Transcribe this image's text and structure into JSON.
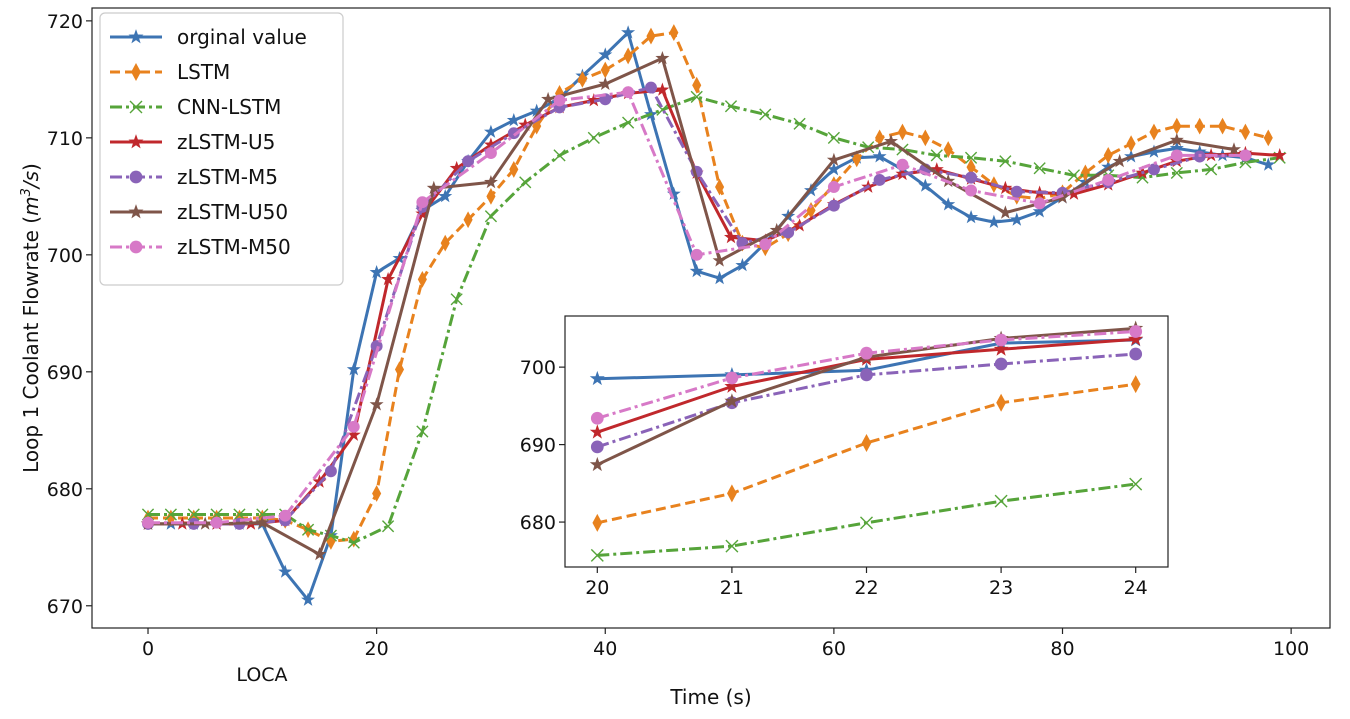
{
  "colors": {
    "orginal value": "#3d74b3",
    "LSTM": "#e8821e",
    "CNN-LSTM": "#56a43a",
    "zLSTM-U5": "#c0282c",
    "zLSTM-M5": "#8a63b8",
    "zLSTM-U50": "#7f5549",
    "zLSTM-M50": "#d779c7"
  },
  "chart_data": [
    {
      "type": "line",
      "title": "",
      "xlabel": "Time (s)",
      "ylabel_prefix": "Loop 1 Coolant Flowrate (",
      "ylabel_unit": "m",
      "ylabel_sup": "3",
      "ylabel_unit2": "/s",
      "ylabel_suffix": ")",
      "annotation": "LOCA",
      "annotation_x": 10,
      "xlim": [
        -4.9,
        103.4
      ],
      "ylim": [
        668.1,
        721.1
      ],
      "xticks": [
        0,
        20,
        40,
        60,
        80,
        100
      ],
      "yticks": [
        670,
        680,
        690,
        700,
        710,
        720
      ],
      "grid": false,
      "legend_position": "top-left",
      "series": [
        {
          "name": "orginal value",
          "style": "solid",
          "marker": "star",
          "x": [
            0,
            2,
            4,
            6,
            8,
            10,
            12,
            14,
            16,
            18,
            20,
            22,
            24,
            26,
            28,
            30,
            32,
            34,
            36,
            38,
            40,
            42,
            44,
            46,
            48,
            50,
            52,
            54,
            56,
            58,
            60,
            62,
            64,
            66,
            68,
            70,
            72,
            74,
            76,
            78,
            80,
            82,
            84,
            86,
            88,
            90,
            92,
            94,
            96,
            98
          ],
          "y": [
            677,
            677,
            677,
            677,
            677,
            677,
            672.9,
            670.5,
            676,
            690.2,
            698.5,
            699.7,
            703.8,
            705,
            708,
            710.5,
            711.5,
            712.3,
            713.4,
            715.3,
            717.1,
            719,
            712,
            705.2,
            698.6,
            698,
            699.1,
            701,
            703.3,
            705.5,
            707.3,
            708.3,
            708.4,
            707.3,
            705.9,
            704.3,
            703.2,
            702.8,
            703,
            703.7,
            704.9,
            706.2,
            707.5,
            708.4,
            708.8,
            709.1,
            708.8,
            708.5,
            708.3,
            707.7
          ]
        },
        {
          "name": "LSTM",
          "style": "dashed",
          "marker": "diamond",
          "x": [
            0,
            2,
            4,
            6,
            8,
            10,
            12,
            14,
            16,
            18,
            20,
            22,
            24,
            26,
            28,
            30,
            32,
            34,
            36,
            38,
            40,
            42,
            44,
            46,
            48,
            50,
            52,
            54,
            56,
            58,
            60,
            62,
            64,
            66,
            68,
            70,
            72,
            74,
            76,
            78,
            80,
            82,
            84,
            86,
            88,
            90,
            92,
            94,
            96,
            98
          ],
          "y": [
            677.5,
            677.5,
            677.5,
            677.5,
            677.5,
            677.5,
            677.3,
            676.5,
            675.5,
            675.7,
            679.6,
            690.2,
            697.9,
            701,
            703,
            705,
            707.3,
            711,
            713.8,
            715,
            715.8,
            717,
            718.7,
            719,
            714.5,
            705.8,
            701,
            700.6,
            701.8,
            703.8,
            706,
            708.2,
            710,
            710.5,
            710,
            709,
            707.5,
            706,
            705,
            704.8,
            705.3,
            707,
            708.5,
            709.5,
            710.5,
            711,
            711,
            711,
            710.5,
            710
          ]
        },
        {
          "name": "CNN-LSTM",
          "style": "dashdot",
          "marker": "x",
          "x": [
            0,
            2,
            4,
            6,
            8,
            10,
            12,
            14,
            16,
            18,
            21,
            24,
            27,
            30,
            33,
            36,
            39,
            42,
            45,
            48,
            51,
            54,
            57,
            60,
            63,
            66,
            69,
            72,
            75,
            78,
            81,
            84,
            87,
            90,
            93,
            96,
            99
          ],
          "y": [
            677.8,
            677.8,
            677.8,
            677.8,
            677.8,
            677.8,
            677.8,
            676.5,
            676,
            675.4,
            676.8,
            684.9,
            696.2,
            703.3,
            706.2,
            708.5,
            710,
            711.3,
            712.4,
            713.5,
            712.7,
            712,
            711.2,
            710,
            709.2,
            709,
            708.5,
            708.3,
            708,
            707.4,
            706.8,
            706.8,
            706.6,
            707,
            707.3,
            707.9,
            708.3
          ]
        },
        {
          "name": "zLSTM-U5",
          "style": "solid",
          "marker": "star",
          "x": [
            0,
            3,
            6,
            9,
            12,
            15,
            18,
            21,
            24,
            27,
            30,
            33,
            36,
            39,
            42,
            45,
            48,
            51,
            54,
            57,
            60,
            63,
            66,
            69,
            72,
            75,
            78,
            81,
            84,
            87,
            90,
            93,
            96,
            99
          ],
          "y": [
            677,
            677,
            677,
            677,
            677.3,
            680.6,
            684.6,
            697.9,
            703.5,
            707.4,
            709.4,
            711.1,
            712.6,
            713.2,
            713.8,
            714.1,
            707,
            701.5,
            701.2,
            702.5,
            704.3,
            705.8,
            706.9,
            707.3,
            706.5,
            705.7,
            705.3,
            705.2,
            706,
            707,
            708,
            708.5,
            708.7,
            708.5
          ]
        },
        {
          "name": "zLSTM-M5",
          "style": "dashdot",
          "marker": "circle",
          "x": [
            0,
            4,
            8,
            12,
            16,
            20,
            24,
            28,
            32,
            36,
            40,
            44,
            48,
            52,
            56,
            60,
            64,
            68,
            72,
            76,
            80,
            84,
            88,
            92,
            96
          ],
          "y": [
            677,
            677,
            677,
            677.3,
            681.5,
            692.2,
            704.1,
            708,
            710.4,
            712.6,
            713.3,
            714.3,
            707.1,
            701,
            701.9,
            704.2,
            706.4,
            707.3,
            706.6,
            705.4,
            705.3,
            706.2,
            707.3,
            708.4,
            708.5
          ]
        },
        {
          "name": "zLSTM-U50",
          "style": "solid",
          "marker": "star",
          "x": [
            0,
            5,
            10,
            15,
            20,
            25,
            30,
            35,
            40,
            45,
            50,
            55,
            60,
            65,
            70,
            75,
            80,
            85,
            90,
            95
          ],
          "y": [
            677,
            677,
            677.1,
            674.4,
            687.2,
            705.7,
            706.2,
            713.3,
            714.6,
            716.8,
            699.5,
            702.1,
            708.1,
            709.7,
            706.3,
            703.6,
            704.9,
            708,
            709.8,
            709
          ]
        },
        {
          "name": "zLSTM-M50",
          "style": "dashdot",
          "marker": "circle",
          "x": [
            0,
            6,
            12,
            18,
            24,
            30,
            36,
            42,
            48,
            54,
            60,
            66,
            72,
            78,
            84,
            90,
            96
          ],
          "y": [
            677.1,
            677.1,
            677.7,
            685.3,
            704.5,
            708.7,
            713.2,
            713.9,
            700,
            700.9,
            705.8,
            707.7,
            705.5,
            704.4,
            706.4,
            708.5,
            708.5
          ]
        }
      ]
    },
    {
      "type": "line",
      "title": "",
      "xlim": [
        19.76,
        24.24
      ],
      "ylim": [
        674.2,
        706.6
      ],
      "xticks": [
        20,
        21,
        22,
        23,
        24
      ],
      "yticks": [
        680,
        690,
        700
      ],
      "grid": false,
      "series": [
        {
          "name": "orginal value",
          "style": "solid",
          "marker": "star",
          "x": [
            20,
            21,
            22,
            23,
            24
          ],
          "y": [
            698.5,
            699,
            699.6,
            703.1,
            703.5
          ]
        },
        {
          "name": "LSTM",
          "style": "dashed",
          "marker": "diamond",
          "x": [
            20,
            21,
            22,
            23,
            24
          ],
          "y": [
            679.9,
            683.7,
            690.2,
            695.4,
            697.8
          ]
        },
        {
          "name": "CNN-LSTM",
          "style": "dashdot",
          "marker": "x",
          "x": [
            20,
            21,
            22,
            23,
            24
          ],
          "y": [
            675.7,
            676.9,
            679.9,
            682.7,
            684.9
          ]
        },
        {
          "name": "zLSTM-U5",
          "style": "solid",
          "marker": "star",
          "x": [
            20,
            21,
            22,
            23,
            24
          ],
          "y": [
            691.6,
            697.5,
            701,
            702.3,
            703.6
          ]
        },
        {
          "name": "zLSTM-M5",
          "style": "dashdot",
          "marker": "circle",
          "x": [
            20,
            21,
            22,
            23,
            24
          ],
          "y": [
            689.7,
            695.4,
            699,
            700.4,
            701.7
          ]
        },
        {
          "name": "zLSTM-U50",
          "style": "solid",
          "marker": "star",
          "x": [
            20,
            21,
            22,
            23,
            24
          ],
          "y": [
            687.4,
            695.6,
            701.3,
            703.7,
            705
          ]
        },
        {
          "name": "zLSTM-M50",
          "style": "dashdot",
          "marker": "circle",
          "x": [
            20,
            21,
            22,
            23,
            24
          ],
          "y": [
            693.4,
            698.6,
            701.8,
            703.5,
            704.6
          ]
        }
      ]
    }
  ],
  "legend": [
    "orginal value",
    "LSTM",
    "CNN-LSTM",
    "zLSTM-U5",
    "zLSTM-M5",
    "zLSTM-U50",
    "zLSTM-M50"
  ]
}
